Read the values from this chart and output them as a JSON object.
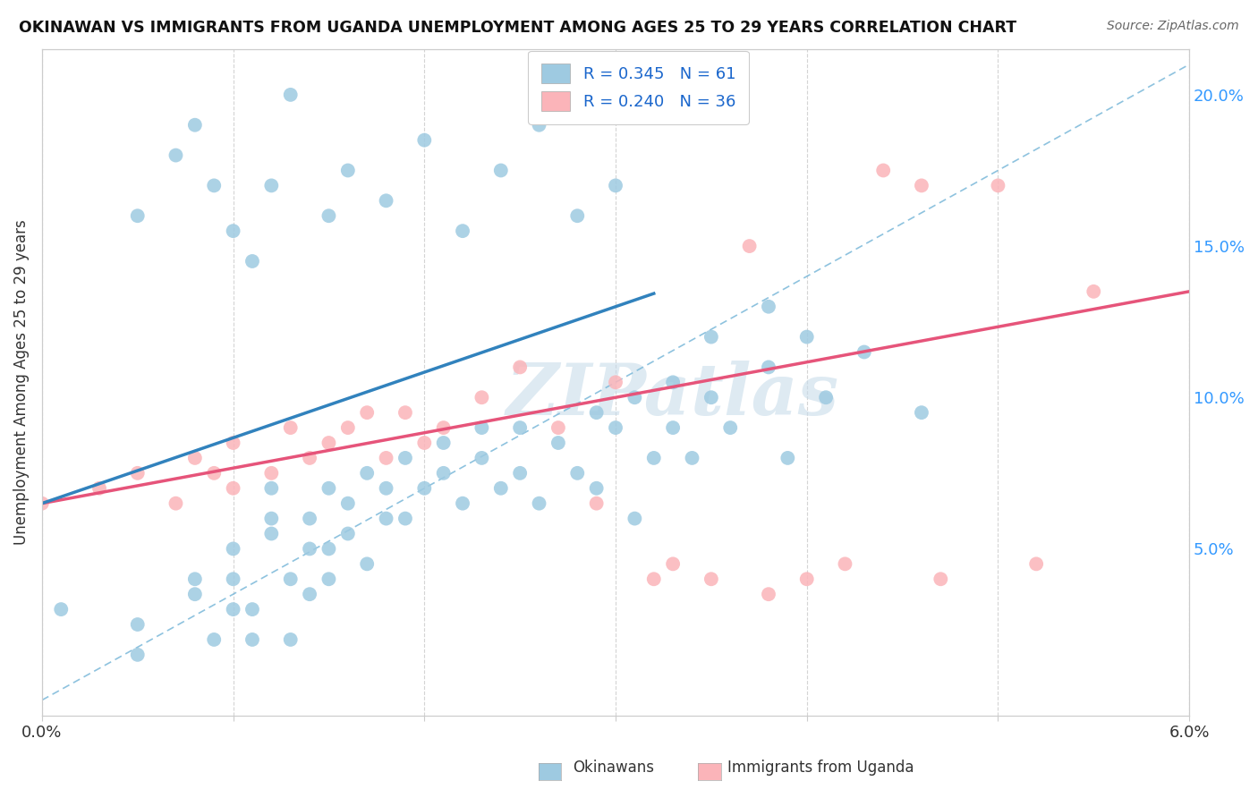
{
  "title": "OKINAWAN VS IMMIGRANTS FROM UGANDA UNEMPLOYMENT AMONG AGES 25 TO 29 YEARS CORRELATION CHART",
  "source": "Source: ZipAtlas.com",
  "ylabel": "Unemployment Among Ages 25 to 29 years",
  "right_yticks": [
    "5.0%",
    "10.0%",
    "15.0%",
    "20.0%"
  ],
  "right_ytick_vals": [
    0.05,
    0.1,
    0.15,
    0.2
  ],
  "xlim": [
    0.0,
    0.06
  ],
  "ylim": [
    -0.005,
    0.215
  ],
  "legend1_label": "R = 0.345   N = 61",
  "legend2_label": "R = 0.240   N = 36",
  "blue_color": "#9ecae1",
  "pink_color": "#fbb4b9",
  "blue_line_color": "#3182bd",
  "pink_line_color": "#e6547a",
  "diag_color": "#9ecae1",
  "watermark": "ZIPatlas",
  "background_color": "#ffffff",
  "grid_color": "#d0d0d0",
  "okinawan_x": [
    0.001,
    0.005,
    0.005,
    0.008,
    0.008,
    0.009,
    0.01,
    0.01,
    0.01,
    0.011,
    0.011,
    0.012,
    0.012,
    0.012,
    0.013,
    0.013,
    0.014,
    0.014,
    0.014,
    0.015,
    0.015,
    0.015,
    0.016,
    0.016,
    0.017,
    0.017,
    0.018,
    0.018,
    0.019,
    0.019,
    0.02,
    0.021,
    0.021,
    0.022,
    0.023,
    0.023,
    0.024,
    0.025,
    0.025,
    0.026,
    0.027,
    0.028,
    0.029,
    0.029,
    0.03,
    0.031,
    0.031,
    0.032,
    0.033,
    0.033,
    0.034,
    0.035,
    0.035,
    0.036,
    0.038,
    0.038,
    0.039,
    0.04,
    0.041,
    0.043,
    0.046
  ],
  "okinawan_y": [
    0.03,
    0.015,
    0.025,
    0.035,
    0.04,
    0.02,
    0.03,
    0.04,
    0.05,
    0.02,
    0.03,
    0.055,
    0.06,
    0.07,
    0.02,
    0.04,
    0.035,
    0.05,
    0.06,
    0.04,
    0.05,
    0.07,
    0.055,
    0.065,
    0.045,
    0.075,
    0.06,
    0.07,
    0.06,
    0.08,
    0.07,
    0.075,
    0.085,
    0.065,
    0.08,
    0.09,
    0.07,
    0.075,
    0.09,
    0.065,
    0.085,
    0.075,
    0.095,
    0.07,
    0.09,
    0.06,
    0.1,
    0.08,
    0.09,
    0.105,
    0.08,
    0.1,
    0.12,
    0.09,
    0.11,
    0.13,
    0.08,
    0.12,
    0.1,
    0.115,
    0.095
  ],
  "okinawan_x2": [
    0.005,
    0.007,
    0.008,
    0.009,
    0.01,
    0.011,
    0.012,
    0.013,
    0.015,
    0.016,
    0.018,
    0.02,
    0.022,
    0.024,
    0.026,
    0.028,
    0.03,
    0.032
  ],
  "okinawan_y2": [
    0.16,
    0.18,
    0.19,
    0.17,
    0.155,
    0.145,
    0.17,
    0.2,
    0.16,
    0.175,
    0.165,
    0.185,
    0.155,
    0.175,
    0.19,
    0.16,
    0.17,
    0.2
  ],
  "uganda_x": [
    0.0,
    0.003,
    0.005,
    0.007,
    0.008,
    0.009,
    0.01,
    0.01,
    0.012,
    0.013,
    0.014,
    0.015,
    0.016,
    0.017,
    0.018,
    0.019,
    0.02,
    0.021,
    0.023,
    0.025,
    0.027,
    0.029,
    0.03,
    0.032,
    0.033,
    0.035,
    0.037,
    0.038,
    0.04,
    0.042,
    0.044,
    0.046,
    0.047,
    0.05,
    0.052,
    0.055
  ],
  "uganda_y": [
    0.065,
    0.07,
    0.075,
    0.065,
    0.08,
    0.075,
    0.07,
    0.085,
    0.075,
    0.09,
    0.08,
    0.085,
    0.09,
    0.095,
    0.08,
    0.095,
    0.085,
    0.09,
    0.1,
    0.11,
    0.09,
    0.065,
    0.105,
    0.04,
    0.045,
    0.04,
    0.15,
    0.035,
    0.04,
    0.045,
    0.175,
    0.17,
    0.04,
    0.17,
    0.045,
    0.135
  ]
}
